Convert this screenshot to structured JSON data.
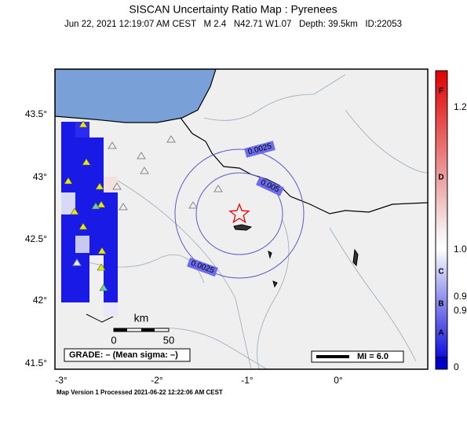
{
  "map": {
    "title": "SISCAN Uncertainty Ratio Map : Pyrenees",
    "subtitle": "Jun 22, 2021 12:19:07 AM CEST   M 2.4   N42.71 W1.07   Depth: 39.5km   ID:22053",
    "lat_labels": [
      "43.5°",
      "43°",
      "42.5°",
      "42°",
      "41.5°"
    ],
    "lon_labels": [
      "-3°",
      "-2°",
      "-1°",
      "0°"
    ],
    "contour_labels": [
      "0.0025",
      "0.005",
      "0.0025"
    ],
    "scale": {
      "unit": "km",
      "start": "0",
      "end": "50"
    },
    "grade": "GRADE: – (Mean sigma: –)",
    "intensity": "MI = 6.0",
    "colorbar": {
      "letters": [
        "F",
        "D",
        "C",
        "B",
        "A"
      ],
      "labels": [
        "1.2",
        "1.0",
        "0.9",
        "0.9",
        "0"
      ]
    },
    "footer": "Map Version 1 Processed 2021-06-22 12:22:06 AM CEST"
  }
}
